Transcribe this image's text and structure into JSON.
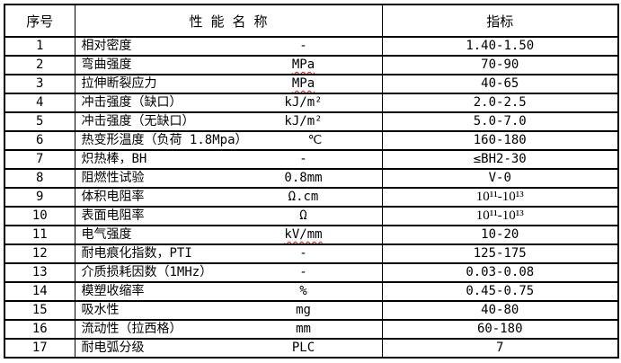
{
  "table": {
    "headers": {
      "no": "序号",
      "name": "性 能 名 称",
      "indicator": "指标"
    },
    "rows": [
      {
        "no": "1",
        "name": "相对密度",
        "unit": "-",
        "value": "1.40-1.50"
      },
      {
        "no": "2",
        "name": "弯曲强度",
        "unit": "MPa",
        "value": "70-90"
      },
      {
        "no": "3",
        "name": "拉伸断裂应力",
        "unit": "MPa",
        "value": "40-65"
      },
      {
        "no": "4",
        "name": "冲击强度（缺口）",
        "unit": "kJ/m²",
        "value": "2.0-2.5"
      },
      {
        "no": "5",
        "name": "冲击强度（无缺口）",
        "unit": "kJ/m²",
        "value": "5.0-7.0"
      },
      {
        "no": "6",
        "name": "热变形温度（负荷 1.8Mpa）",
        "unit": "℃",
        "value": "160-180"
      },
      {
        "no": "7",
        "name": "炽热棒，BH",
        "unit": "-",
        "value": "≤BH2-30"
      },
      {
        "no": "8",
        "name": "阻燃性试验",
        "unit": "0.8mm",
        "value": "V-0"
      },
      {
        "no": "9",
        "name": "体积电阻率",
        "unit": "Ω.cm",
        "value": "10¹¹-10¹³"
      },
      {
        "no": "10",
        "name": "表面电阻率",
        "unit": "Ω",
        "value": "10¹¹-10¹³"
      },
      {
        "no": "11",
        "name": "电气强度",
        "unit": "kV/mm",
        "value": "10-20"
      },
      {
        "no": "12",
        "name": "耐电痕化指数，PTI",
        "unit": "-",
        "value": "125-175"
      },
      {
        "no": "13",
        "name": "介质损耗因数（1MHz）",
        "unit": "-",
        "value": "0.03-0.08"
      },
      {
        "no": "14",
        "name": "模塑收缩率",
        "unit": "%",
        "value": "0.45-0.75"
      },
      {
        "no": "15",
        "name": "吸水性",
        "unit": "mg",
        "value": "40-80"
      },
      {
        "no": "16",
        "name": "流动性（拉西格）",
        "unit": "mm",
        "value": "60-180"
      },
      {
        "no": "17",
        "name": "耐电弧分级",
        "unit": "PLC",
        "value": "7"
      }
    ],
    "spellcheck_underlined_units": [
      "MPa",
      "kV/mm"
    ],
    "spellcheck_underline_color": "#ff0000",
    "border_color": "#000000",
    "text_color": "#000000",
    "background_color": "#ffffff"
  }
}
